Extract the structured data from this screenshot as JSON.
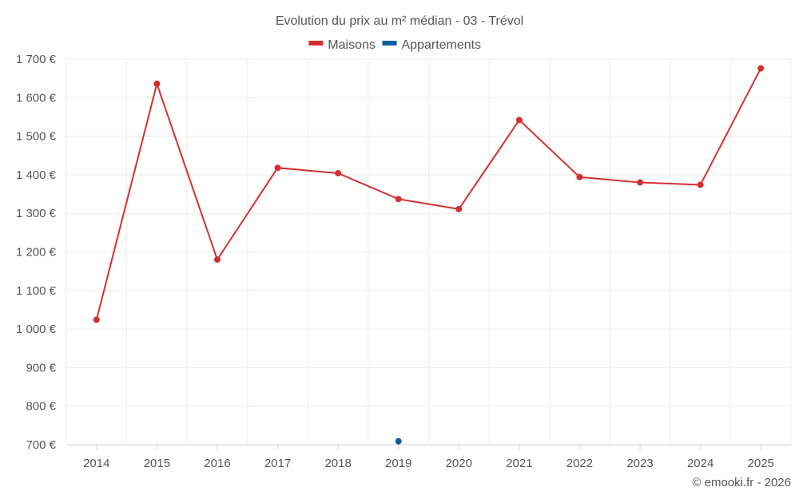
{
  "chart_data": {
    "type": "line",
    "title": "Evolution du prix au m² médian - 03 - Trévol",
    "categories": [
      "2014",
      "2015",
      "2016",
      "2017",
      "2018",
      "2019",
      "2020",
      "2021",
      "2022",
      "2023",
      "2024",
      "2025"
    ],
    "y_ticks": [
      "700 €",
      "800 €",
      "900 €",
      "1 000 €",
      "1 100 €",
      "1 200 €",
      "1 300 €",
      "1 400 €",
      "1 500 €",
      "1 600 €",
      "1 700 €"
    ],
    "ylim": [
      700,
      1700
    ],
    "series": [
      {
        "name": "Maisons",
        "color": "#d32f2f",
        "values": [
          1024,
          1636,
          1180,
          1418,
          1404,
          1337,
          1311,
          1542,
          1394,
          1380,
          1374,
          1676
        ]
      },
      {
        "name": "Appartements",
        "color": "#0b5f9e",
        "values": [
          null,
          null,
          null,
          null,
          null,
          709,
          null,
          null,
          null,
          null,
          null,
          null
        ]
      }
    ],
    "xlabel": "",
    "ylabel": "",
    "grid": true,
    "legend": "top-center"
  },
  "footer": "© emooki.fr - 2026"
}
